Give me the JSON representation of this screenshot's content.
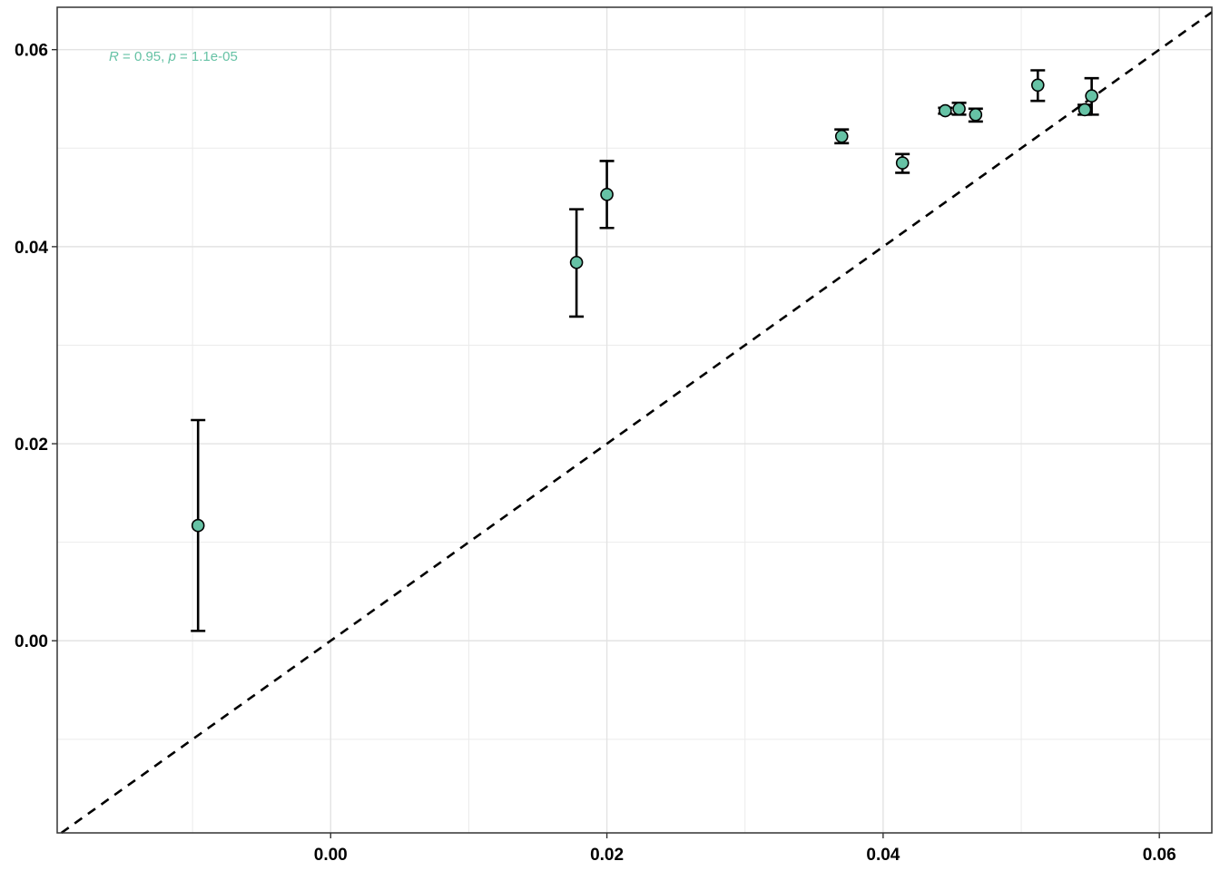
{
  "chart_data": {
    "type": "scatter",
    "title": "",
    "xlabel": "",
    "ylabel": "",
    "xlim": [
      -0.0198,
      0.0638
    ],
    "ylim": [
      -0.0195,
      0.0643
    ],
    "x_ticks": [
      0.0,
      0.02,
      0.04,
      0.06
    ],
    "x_tick_labels": [
      "0.00",
      "0.02",
      "0.04",
      "0.06"
    ],
    "y_ticks": [
      0.0,
      0.02,
      0.04,
      0.06
    ],
    "y_tick_labels": [
      "0.00",
      "0.02",
      "0.04",
      "0.06"
    ],
    "x_minor_grid": [
      -0.01,
      0.01,
      0.03,
      0.05
    ],
    "y_minor_grid": [
      -0.01,
      0.01,
      0.03,
      0.05
    ],
    "grid": true,
    "reference_line": {
      "slope": 1,
      "intercept": 0,
      "style": "dashed"
    },
    "point_color": "#66c2a5",
    "point_edge_color": "#000000",
    "annotation": {
      "r_symbol": "R",
      "r_rest": " = 0.95, ",
      "p_symbol": "p",
      "p_rest": " = 1.1e-05",
      "color": "#66c2a5"
    },
    "points": [
      {
        "x": -0.0096,
        "y": 0.0117,
        "ymin": 0.001,
        "ymax": 0.0224
      },
      {
        "x": 0.0178,
        "y": 0.0384,
        "ymin": 0.0329,
        "ymax": 0.0438
      },
      {
        "x": 0.02,
        "y": 0.0453,
        "ymin": 0.0419,
        "ymax": 0.0487
      },
      {
        "x": 0.037,
        "y": 0.0512,
        "ymin": 0.0505,
        "ymax": 0.0519
      },
      {
        "x": 0.0414,
        "y": 0.0485,
        "ymin": 0.0475,
        "ymax": 0.0494
      },
      {
        "x": 0.0445,
        "y": 0.0538,
        "ymin": 0.0535,
        "ymax": 0.0541
      },
      {
        "x": 0.0455,
        "y": 0.054,
        "ymin": 0.0534,
        "ymax": 0.0546
      },
      {
        "x": 0.0467,
        "y": 0.0534,
        "ymin": 0.0527,
        "ymax": 0.054
      },
      {
        "x": 0.0512,
        "y": 0.0564,
        "ymin": 0.0548,
        "ymax": 0.0579
      },
      {
        "x": 0.0546,
        "y": 0.0539,
        "ymin": 0.0534,
        "ymax": 0.0544
      },
      {
        "x": 0.0551,
        "y": 0.0553,
        "ymin": 0.0534,
        "ymax": 0.0571
      }
    ]
  }
}
